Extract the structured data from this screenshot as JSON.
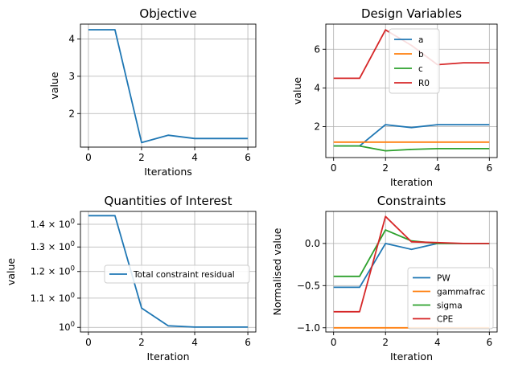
{
  "chart_data": [
    {
      "type": "line",
      "title": "Objective",
      "xlabel": "Iterations",
      "ylabel": "value",
      "x": [
        0,
        1,
        2,
        3,
        4,
        5,
        6
      ],
      "xticks": [
        "0",
        "2",
        "4",
        "6"
      ],
      "yticks": [
        "2",
        "3",
        "4"
      ],
      "xlim": [
        -0.3,
        6.3
      ],
      "ylim": [
        1.1,
        4.4
      ],
      "grid": true,
      "series": [
        {
          "values": [
            4.25,
            4.25,
            1.22,
            1.42,
            1.33,
            1.33,
            1.33
          ],
          "color": "#1f77b4"
        }
      ]
    },
    {
      "type": "line",
      "title": "Design Variables",
      "xlabel": "Iteration",
      "ylabel": "value",
      "x": [
        0,
        1,
        2,
        3,
        4,
        5,
        6
      ],
      "xticks": [
        "0",
        "2",
        "4",
        "6"
      ],
      "yticks": [
        "2",
        "4",
        "6"
      ],
      "xlim": [
        -0.3,
        6.3
      ],
      "ylim": [
        0.4,
        7.3
      ],
      "grid": true,
      "legend": "top-center",
      "series": [
        {
          "name": "a",
          "values": [
            1.0,
            1.0,
            2.1,
            1.95,
            2.1,
            2.1,
            2.1
          ],
          "color": "#1f77b4"
        },
        {
          "name": "b",
          "values": [
            1.2,
            1.2,
            1.2,
            1.2,
            1.2,
            1.2,
            1.2
          ],
          "color": "#ff7f0e"
        },
        {
          "name": "c",
          "values": [
            1.0,
            1.0,
            0.75,
            0.82,
            0.86,
            0.86,
            0.86
          ],
          "color": "#2ca02c"
        },
        {
          "name": "R0",
          "values": [
            4.5,
            4.5,
            7.0,
            6.2,
            5.2,
            5.3,
            5.3
          ],
          "color": "#d62728"
        }
      ]
    },
    {
      "type": "line",
      "title": "Quantities of Interest",
      "xlabel": "Iteration",
      "ylabel": "value",
      "yscale": "log",
      "x": [
        0,
        1,
        2,
        3,
        4,
        5,
        6
      ],
      "xticks": [
        "0",
        "2",
        "4",
        "6"
      ],
      "ytick_values": [
        1.0,
        1.1,
        1.2,
        1.3,
        1.4
      ],
      "yticks": [
        {
          "mantissa": "",
          "exp": "0"
        },
        {
          "mantissa": "1.1",
          "exp": "0"
        },
        {
          "mantissa": "1.2",
          "exp": "0"
        },
        {
          "mantissa": "1.3",
          "exp": "0"
        },
        {
          "mantissa": "1.4",
          "exp": "0"
        }
      ],
      "xlim": [
        -0.3,
        6.3
      ],
      "ylim": [
        0.985,
        1.46
      ],
      "grid": true,
      "legend": "center-right",
      "series": [
        {
          "name": "Total constraint residual",
          "values": [
            1.44,
            1.44,
            1.065,
            1.005,
            1.001,
            1.001,
            1.001
          ],
          "color": "#1f77b4"
        }
      ]
    },
    {
      "type": "line",
      "title": "Constraints",
      "xlabel": "Iteration",
      "ylabel": "Normalised value",
      "x": [
        0,
        1,
        2,
        3,
        4,
        5,
        6
      ],
      "xticks": [
        "0",
        "2",
        "4",
        "6"
      ],
      "ytick_values": [
        -1.0,
        -0.5,
        0.0
      ],
      "yticks": [
        "−1.0",
        "−0.5",
        "0.0"
      ],
      "xlim": [
        -0.3,
        6.3
      ],
      "ylim": [
        -1.05,
        0.38
      ],
      "grid": true,
      "legend": "lower-right",
      "series": [
        {
          "name": "PW",
          "values": [
            -0.52,
            -0.52,
            0.0,
            -0.07,
            0.0,
            0.0,
            0.0
          ],
          "color": "#1f77b4"
        },
        {
          "name": "gammafrac",
          "values": [
            -1.0,
            -1.0,
            -1.0,
            -1.0,
            -1.0,
            -1.0,
            -1.0
          ],
          "color": "#ff7f0e"
        },
        {
          "name": "sigma",
          "values": [
            -0.39,
            -0.39,
            0.16,
            0.03,
            0.0,
            0.0,
            0.0
          ],
          "color": "#2ca02c"
        },
        {
          "name": "CPE",
          "values": [
            -0.81,
            -0.81,
            0.32,
            0.02,
            0.01,
            0.0,
            0.0
          ],
          "color": "#d62728"
        }
      ]
    }
  ]
}
